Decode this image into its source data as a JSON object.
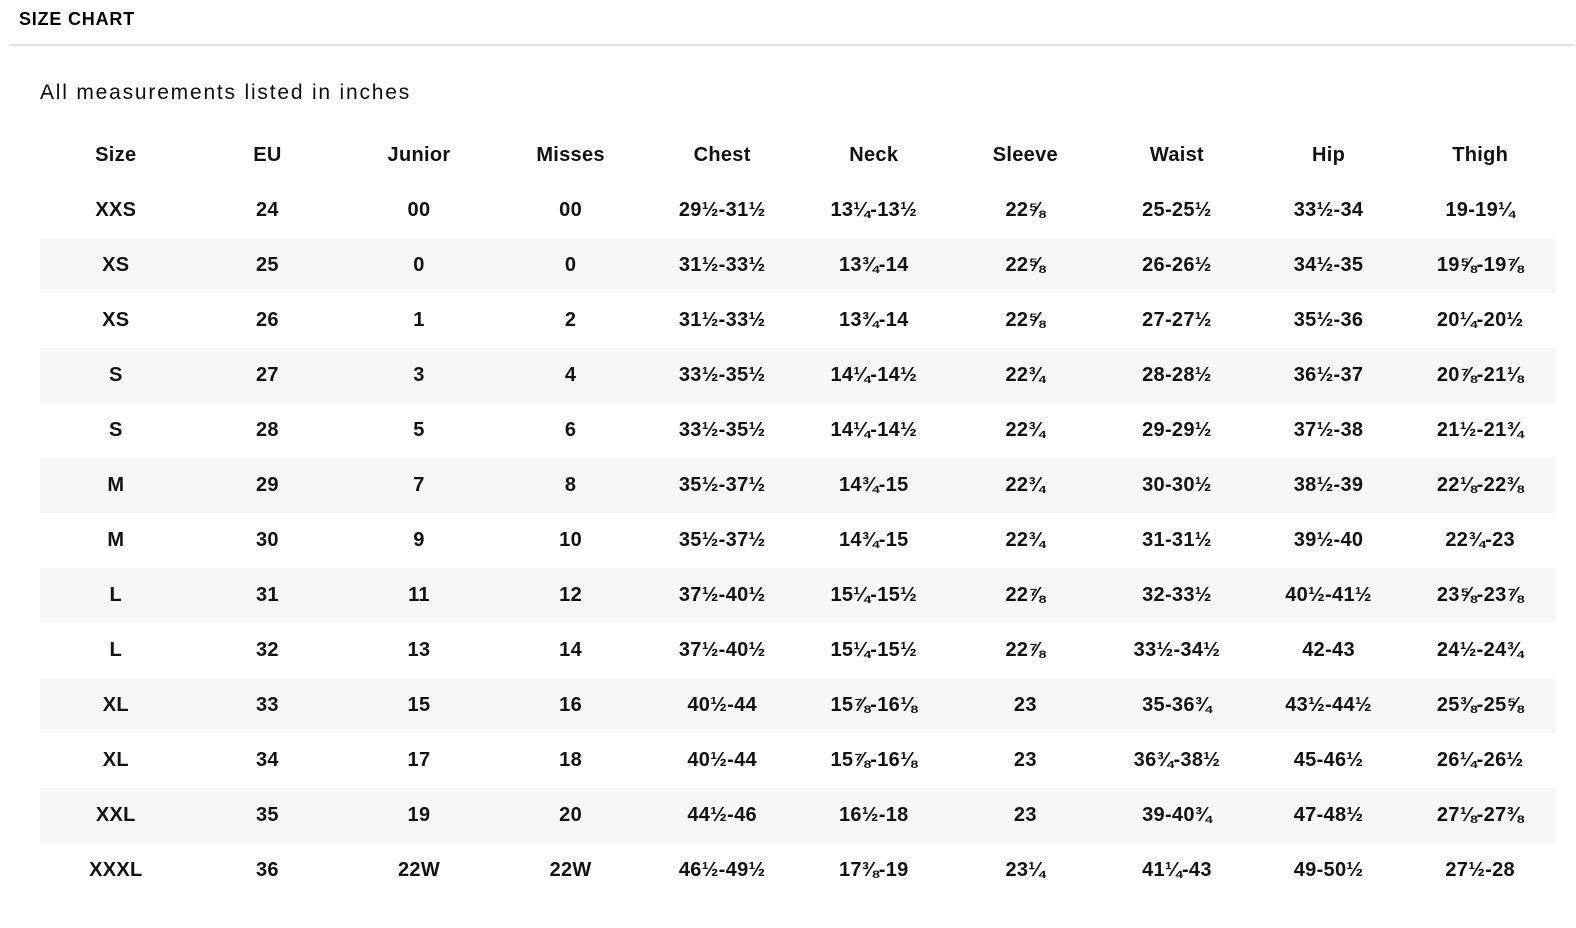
{
  "header": {
    "title": "SIZE CHART",
    "subtitle": "All measurements listed in inches"
  },
  "table": {
    "columns": [
      "Size",
      "EU",
      "Junior",
      "Misses",
      "Chest",
      "Neck",
      "Sleeve",
      "Waist",
      "Hip",
      "Thigh"
    ],
    "rows": [
      [
        "XXS",
        "24",
        "00",
        "00",
        "29½-31½",
        "13¼-13½",
        "22⅝",
        "25-25½",
        "33½-34",
        "19-19¼"
      ],
      [
        "XS",
        "25",
        "0",
        "0",
        "31½-33½",
        "13¾-14",
        "22⅝",
        "26-26½",
        "34½-35",
        "19⅝-19⅞"
      ],
      [
        "XS",
        "26",
        "1",
        "2",
        "31½-33½",
        "13¾-14",
        "22⅝",
        "27-27½",
        "35½-36",
        "20¼-20½"
      ],
      [
        "S",
        "27",
        "3",
        "4",
        "33½-35½",
        "14¼-14½",
        "22¾",
        "28-28½",
        "36½-37",
        "20⅞-21⅛"
      ],
      [
        "S",
        "28",
        "5",
        "6",
        "33½-35½",
        "14¼-14½",
        "22¾",
        "29-29½",
        "37½-38",
        "21½-21¾"
      ],
      [
        "M",
        "29",
        "7",
        "8",
        "35½-37½",
        "14¾-15",
        "22¾",
        "30-30½",
        "38½-39",
        "22⅛-22⅜"
      ],
      [
        "M",
        "30",
        "9",
        "10",
        "35½-37½",
        "14¾-15",
        "22¾",
        "31-31½",
        "39½-40",
        "22¾-23"
      ],
      [
        "L",
        "31",
        "11",
        "12",
        "37½-40½",
        "15¼-15½",
        "22⅞",
        "32-33½",
        "40½-41½",
        "23⅝-23⅞"
      ],
      [
        "L",
        "32",
        "13",
        "14",
        "37½-40½",
        "15¼-15½",
        "22⅞",
        "33½-34½",
        "42-43",
        "24½-24¾"
      ],
      [
        "XL",
        "33",
        "15",
        "16",
        "40½-44",
        "15⅞-16⅛",
        "23",
        "35-36¾",
        "43½-44½",
        "25⅜-25⅝"
      ],
      [
        "XL",
        "34",
        "17",
        "18",
        "40½-44",
        "15⅞-16⅛",
        "23",
        "36¾-38½",
        "45-46½",
        "26¼-26½"
      ],
      [
        "XXL",
        "35",
        "19",
        "20",
        "44½-46",
        "16½-18",
        "23",
        "39-40¾",
        "47-48½",
        "27⅛-27⅜"
      ],
      [
        "XXXL",
        "36",
        "22W",
        "22W",
        "46½-49½",
        "17⅜-19",
        "23¼",
        "41¼-43",
        "49-50½",
        "27½-28"
      ]
    ]
  },
  "colors": {
    "text": "#121212",
    "stripe": "#f7f7f7",
    "divider": "#e2e2e2"
  }
}
